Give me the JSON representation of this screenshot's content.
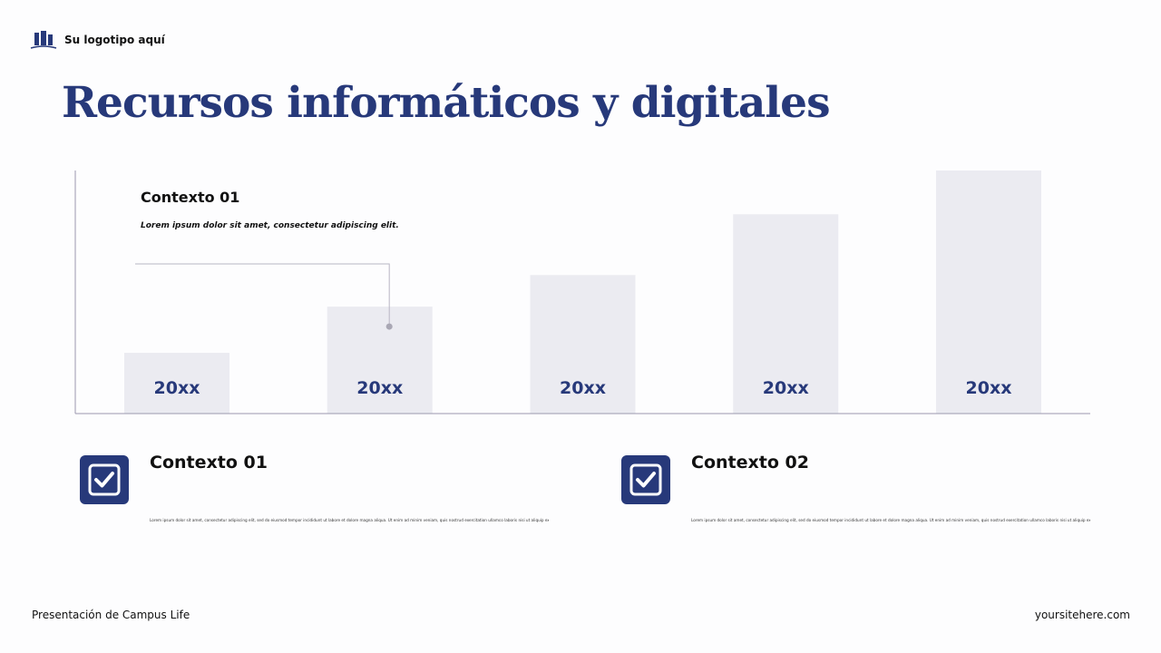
{
  "header": {
    "logo_text": "Su logotipo aquí",
    "title": "Recursos informáticos y digitales"
  },
  "chart_data": {
    "type": "bar",
    "categories": [
      "20xx",
      "20xx",
      "20xx",
      "20xx",
      "20xx"
    ],
    "values": [
      25,
      44,
      57,
      82,
      100
    ],
    "ylim": [
      0,
      100
    ],
    "title": "",
    "xlabel": "",
    "ylabel": "",
    "grid": false,
    "annotation": {
      "title": "Contexto 01",
      "text": "Lorem ipsum dolor sit amet, consectetur adipiscing elit.",
      "points_to_index": 1
    }
  },
  "cards": [
    {
      "title": "Contexto 01",
      "text": "Lorem ipsum dolor sit amet, consectetur adipiscing elit, sed do eiusmod tempor incididunt ut labore et dolore magna aliqua. Ut enim ad minim veniam, quis nostrud exercitation ullamco laboris nisi ut aliquip ex ea commodo consequat pariatur. Proin."
    },
    {
      "title": "Contexto 02",
      "text": "Lorem ipsum dolor sit amet, consectetur adipiscing elit, sed do eiusmod tempor incididunt ut labore et dolore magna aliqua. Ut enim ad minim veniam, quis nostrud exercitation ullamco laboris nisi ut aliquip ex ea commodo consequat pariatur. Proin."
    }
  ],
  "footer": {
    "left": "Presentación de Campus Life",
    "right": "yoursitehere.com"
  },
  "colors": {
    "accent": "#27397a",
    "bar": "#ebebf1",
    "axis": "#9a98ad"
  }
}
